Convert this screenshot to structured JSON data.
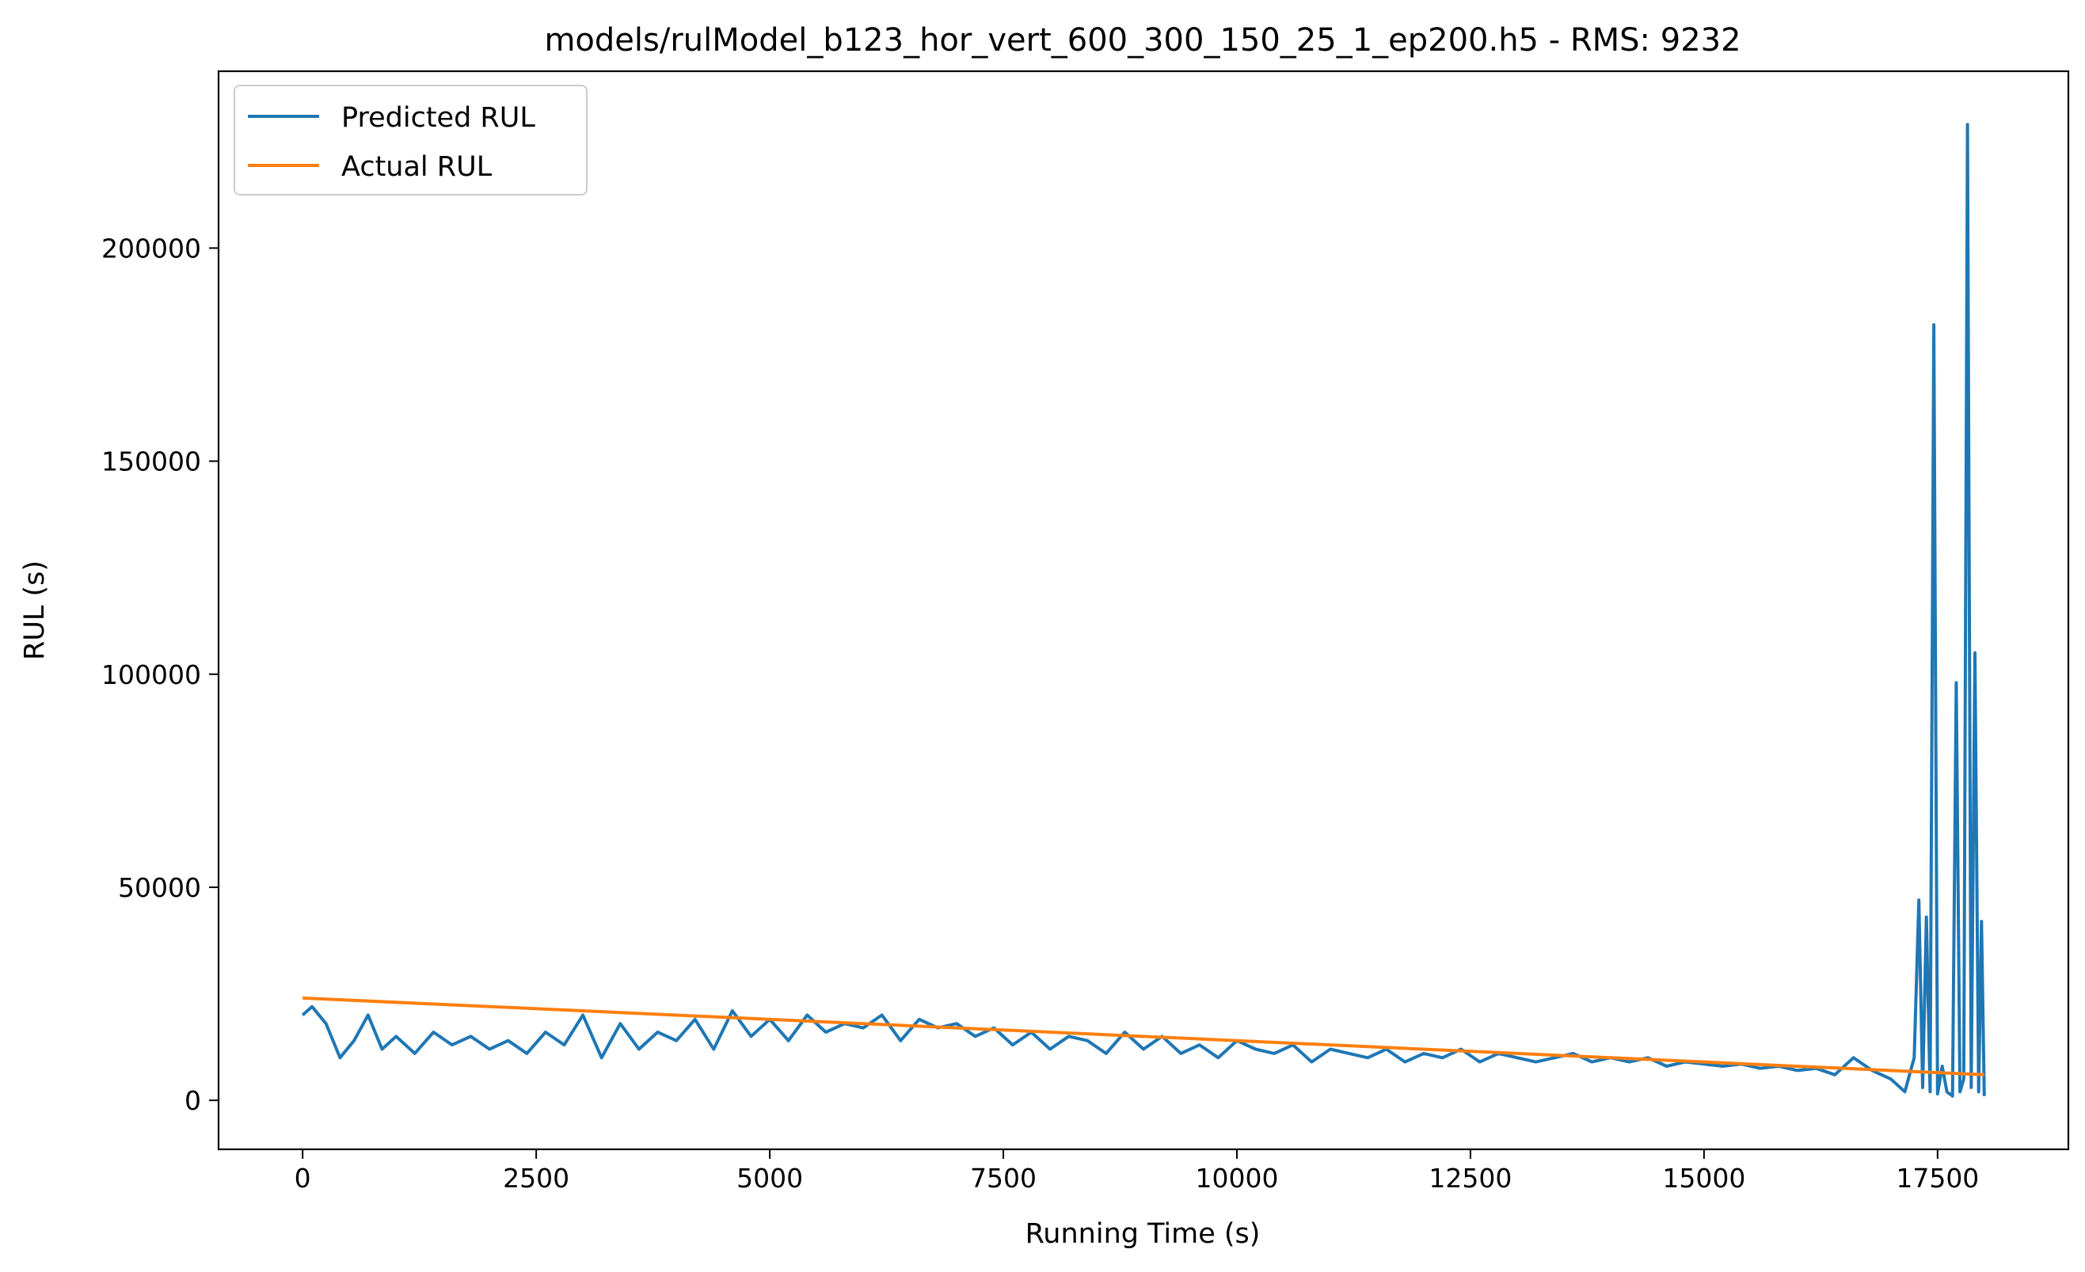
{
  "chart_data": {
    "type": "line",
    "title": "models/rulModel_b123_hor_vert_600_300_150_25_1_ep200.h5 - RMS: 9232",
    "xlabel": "Running Time (s)",
    "ylabel": "RUL (s)",
    "xlim": [
      -900,
      18900
    ],
    "ylim": [
      -11500,
      241500
    ],
    "xticks": [
      0,
      2500,
      5000,
      7500,
      10000,
      12500,
      15000,
      17500
    ],
    "yticks": [
      0,
      50000,
      100000,
      150000,
      200000
    ],
    "grid": false,
    "legend_position": "top-left",
    "series": [
      {
        "name": "Predicted RUL",
        "color": "#1f77b4",
        "x": [
          0,
          100,
          250,
          400,
          550,
          700,
          850,
          1000,
          1200,
          1400,
          1600,
          1800,
          2000,
          2200,
          2400,
          2600,
          2800,
          3000,
          3200,
          3400,
          3600,
          3800,
          4000,
          4200,
          4400,
          4600,
          4800,
          5000,
          5200,
          5400,
          5600,
          5800,
          6000,
          6200,
          6400,
          6600,
          6800,
          7000,
          7200,
          7400,
          7600,
          7800,
          8000,
          8200,
          8400,
          8600,
          8800,
          9000,
          9200,
          9400,
          9600,
          9800,
          10000,
          10200,
          10400,
          10600,
          10800,
          11000,
          11200,
          11400,
          11600,
          11800,
          12000,
          12200,
          12400,
          12600,
          12800,
          13000,
          13200,
          13400,
          13600,
          13800,
          14000,
          14200,
          14400,
          14600,
          14800,
          15000,
          15200,
          15400,
          15600,
          15800,
          16000,
          16200,
          16400,
          16600,
          16800,
          17000,
          17150,
          17250,
          17300,
          17340,
          17380,
          17420,
          17460,
          17500,
          17550,
          17600,
          17660,
          17700,
          17740,
          17780,
          17820,
          17860,
          17900,
          17940,
          17970,
          18000
        ],
        "values": [
          20000,
          22000,
          18000,
          10000,
          14000,
          20000,
          12000,
          15000,
          11000,
          16000,
          13000,
          15000,
          12000,
          14000,
          11000,
          16000,
          13000,
          20000,
          10000,
          18000,
          12000,
          16000,
          14000,
          19000,
          12000,
          21000,
          15000,
          19000,
          14000,
          20000,
          16000,
          18000,
          17000,
          20000,
          14000,
          19000,
          17000,
          18000,
          15000,
          17000,
          13000,
          16000,
          12000,
          15000,
          14000,
          11000,
          16000,
          12000,
          15000,
          11000,
          13000,
          10000,
          14000,
          12000,
          11000,
          13000,
          9000,
          12000,
          11000,
          10000,
          12000,
          9000,
          11000,
          10000,
          12000,
          9000,
          11000,
          10000,
          9000,
          10000,
          11000,
          9000,
          10000,
          9000,
          10000,
          8000,
          9000,
          8500,
          8000,
          8500,
          7500,
          8000,
          7000,
          7500,
          6000,
          10000,
          7000,
          5000,
          2000,
          10000,
          47000,
          3000,
          43000,
          2000,
          182000,
          1500,
          8000,
          2000,
          1000,
          98000,
          2000,
          5000,
          229000,
          3000,
          105000,
          2000,
          42000,
          1000
        ]
      },
      {
        "name": "Actual RUL",
        "color": "#ff7f0e",
        "x": [
          0,
          18000
        ],
        "values": [
          24000,
          6000
        ]
      }
    ]
  }
}
